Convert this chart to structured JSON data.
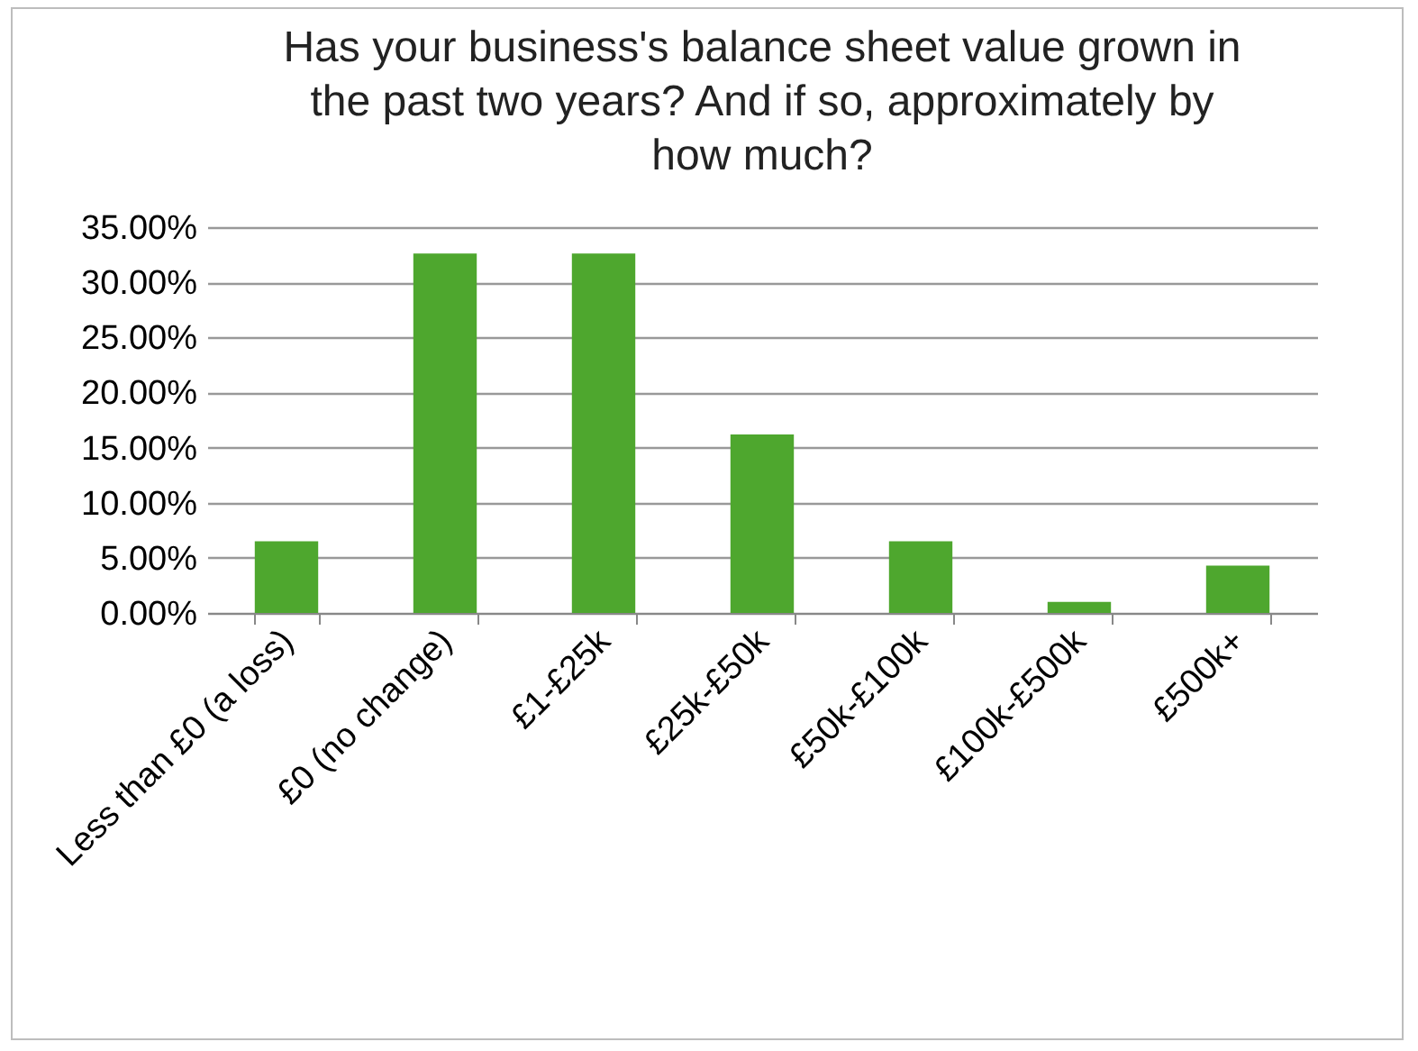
{
  "chart_data": {
    "type": "bar",
    "title": "Has your business's balance sheet value grown in the past two years? And if so, approximately by how much?",
    "categories": [
      "Less than £0 (a loss)",
      "£0 (no change)",
      "£1-£25k",
      "£25k-£50k",
      "£50k-£100k",
      "£100k-£500k",
      "£500k+"
    ],
    "values": [
      6.5,
      32.6,
      32.6,
      16.2,
      6.5,
      1.0,
      4.3
    ],
    "color": "#4ea72e",
    "ylim": [
      0,
      35
    ],
    "yticks": [
      {
        "value": 0,
        "label": "0.00%"
      },
      {
        "value": 5,
        "label": "5.00%"
      },
      {
        "value": 10,
        "label": "10.00%"
      },
      {
        "value": 15,
        "label": "15.00%"
      },
      {
        "value": 20,
        "label": "20.00%"
      },
      {
        "value": 25,
        "label": "25.00%"
      },
      {
        "value": 30,
        "label": "30.00%"
      },
      {
        "value": 35,
        "label": "35.00%"
      }
    ],
    "grid": "y"
  }
}
